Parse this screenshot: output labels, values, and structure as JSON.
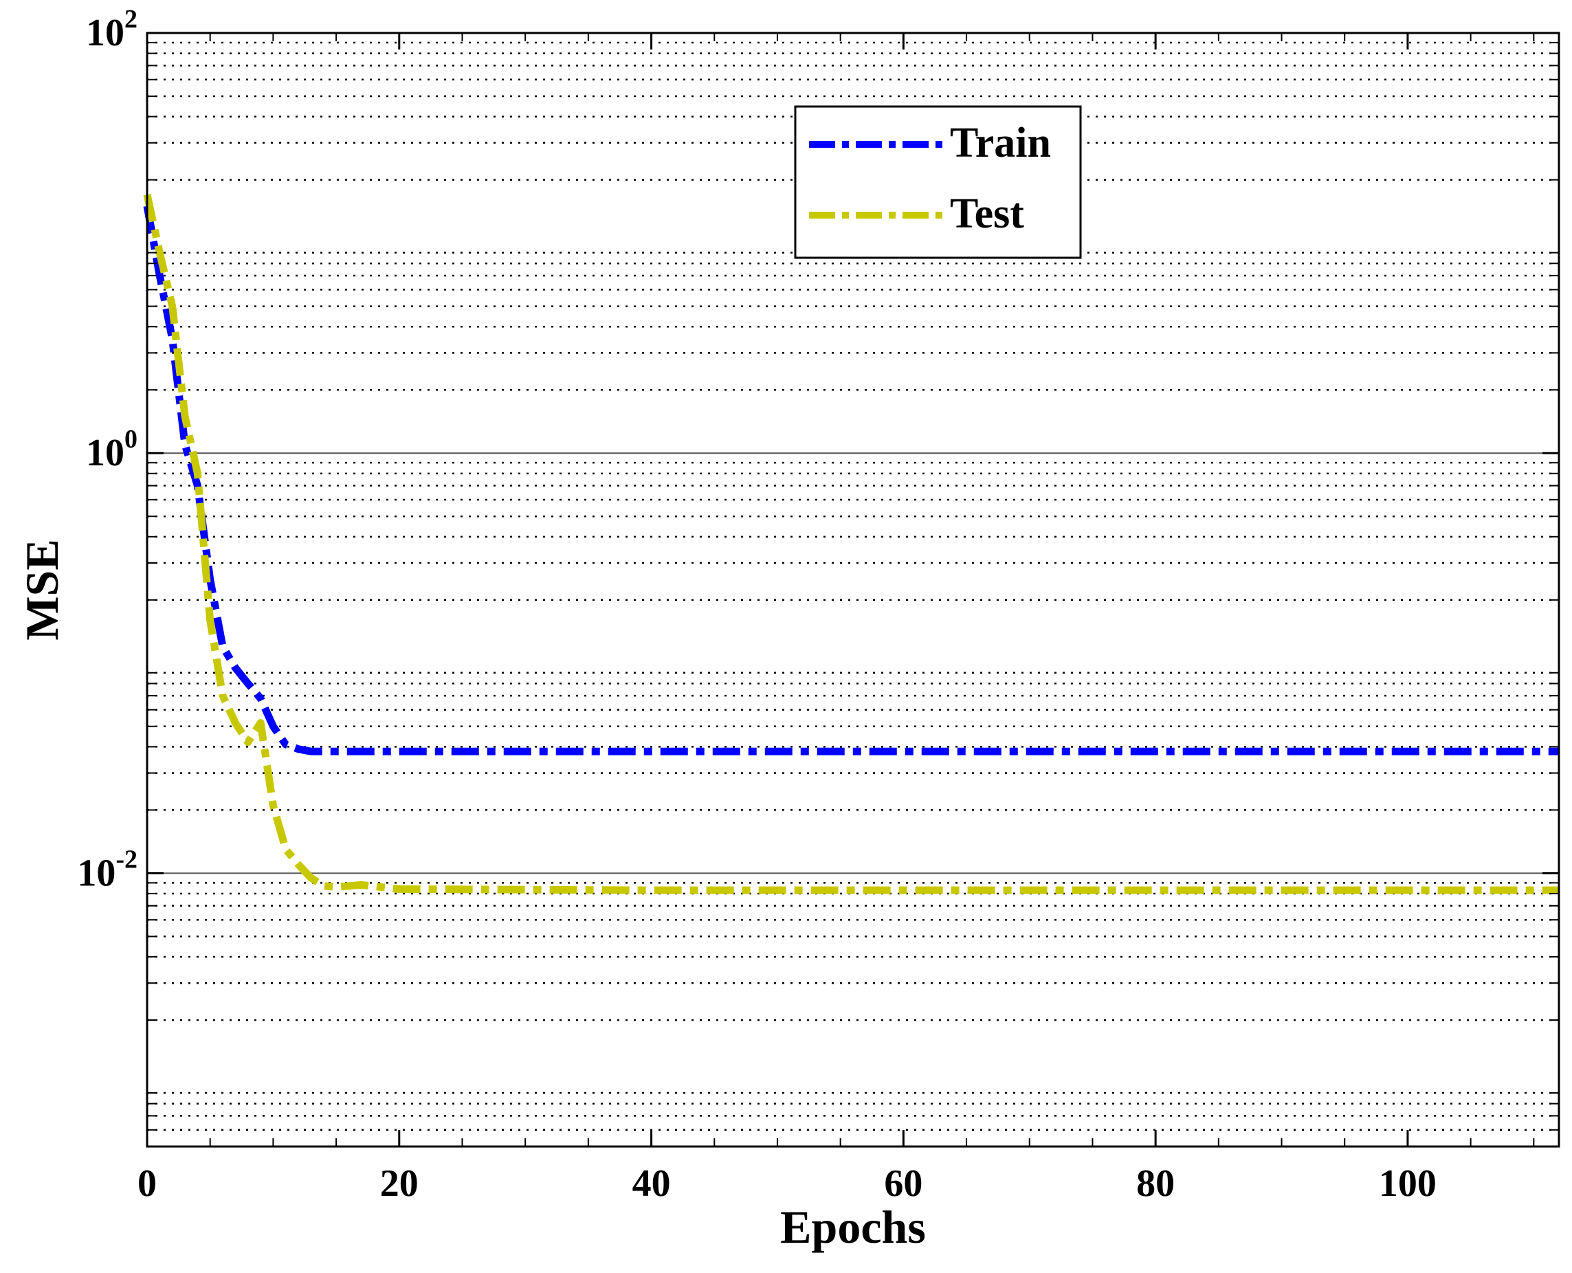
{
  "chart_data": {
    "type": "line",
    "title": "",
    "xlabel": "Epochs",
    "ylabel": "MSE",
    "xlim": [
      0,
      112
    ],
    "ylim": [
      0.0005,
      100
    ],
    "yscale": "log",
    "x_ticks": [
      {
        "value": 0,
        "label": "0"
      },
      {
        "value": 20,
        "label": "20"
      },
      {
        "value": 40,
        "label": "40"
      },
      {
        "value": 60,
        "label": "60"
      },
      {
        "value": 80,
        "label": "80"
      },
      {
        "value": 100,
        "label": "100"
      }
    ],
    "y_ticks": [
      {
        "value": 100,
        "base": "10",
        "exp": "2"
      },
      {
        "value": 1,
        "base": "10",
        "exp": "0"
      },
      {
        "value": 0.01,
        "base": "10",
        "exp": "-2"
      }
    ],
    "grid": "dotted minor horizontal lines",
    "legend_position": "top-center",
    "series": [
      {
        "name": "Train",
        "color": "#0000ff",
        "style": "dash-dot",
        "x": [
          0,
          1,
          2,
          3,
          4,
          5,
          6,
          7,
          8,
          9,
          10,
          11,
          12,
          13,
          14,
          20,
          40,
          60,
          80,
          100,
          112
        ],
        "y": [
          15,
          7,
          3.5,
          1.1,
          0.7,
          0.25,
          0.12,
          0.095,
          0.08,
          0.068,
          0.05,
          0.041,
          0.039,
          0.038,
          0.038,
          0.038,
          0.038,
          0.038,
          0.038,
          0.038,
          0.038
        ]
      },
      {
        "name": "Test",
        "color": "#c8c800",
        "style": "dash-dot",
        "x": [
          0,
          1,
          2,
          3,
          4,
          5,
          6,
          7,
          8,
          9,
          10,
          11,
          12,
          13,
          14,
          15,
          17,
          20,
          40,
          60,
          80,
          100,
          112
        ],
        "y": [
          17,
          9,
          5,
          1.5,
          0.8,
          0.16,
          0.07,
          0.052,
          0.042,
          0.052,
          0.021,
          0.013,
          0.011,
          0.0095,
          0.0087,
          0.0086,
          0.0088,
          0.0084,
          0.0083,
          0.0083,
          0.0083,
          0.0083,
          0.0083
        ]
      }
    ]
  }
}
